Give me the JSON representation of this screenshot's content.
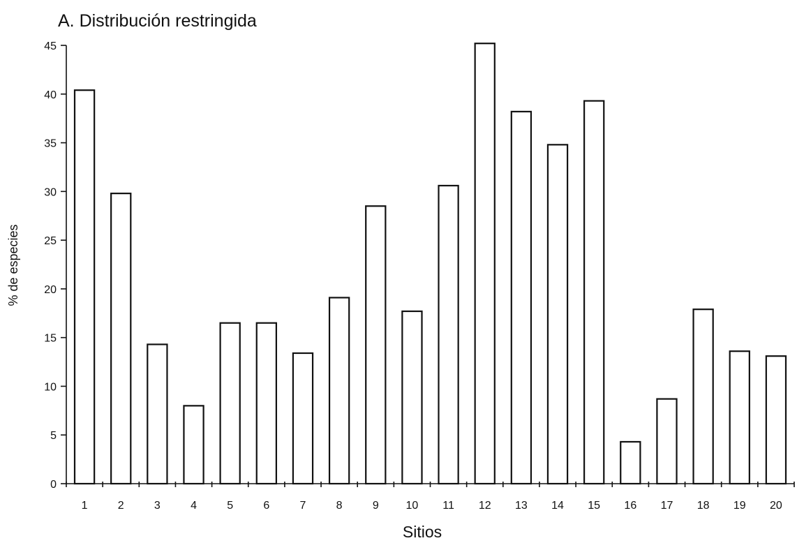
{
  "chart_data": {
    "type": "bar",
    "title": "A. Distribución restringida",
    "xlabel": "Sitios",
    "ylabel": "% de especies",
    "categories": [
      "1",
      "2",
      "3",
      "4",
      "5",
      "6",
      "7",
      "8",
      "9",
      "10",
      "11",
      "12",
      "13",
      "14",
      "15",
      "16",
      "17",
      "18",
      "19",
      "20"
    ],
    "values": [
      40.4,
      29.8,
      14.3,
      8.0,
      16.5,
      16.5,
      13.4,
      19.1,
      28.5,
      17.7,
      30.6,
      45.2,
      38.2,
      34.8,
      39.3,
      4.3,
      8.7,
      17.9,
      13.6,
      13.1
    ],
    "ylim": [
      0,
      45
    ],
    "yticks": [
      "0",
      "5",
      "10",
      "15",
      "20",
      "25",
      "30",
      "35",
      "40",
      "45"
    ],
    "grid": false,
    "bar_color": "#ffffff",
    "edge_color": "#111111"
  }
}
